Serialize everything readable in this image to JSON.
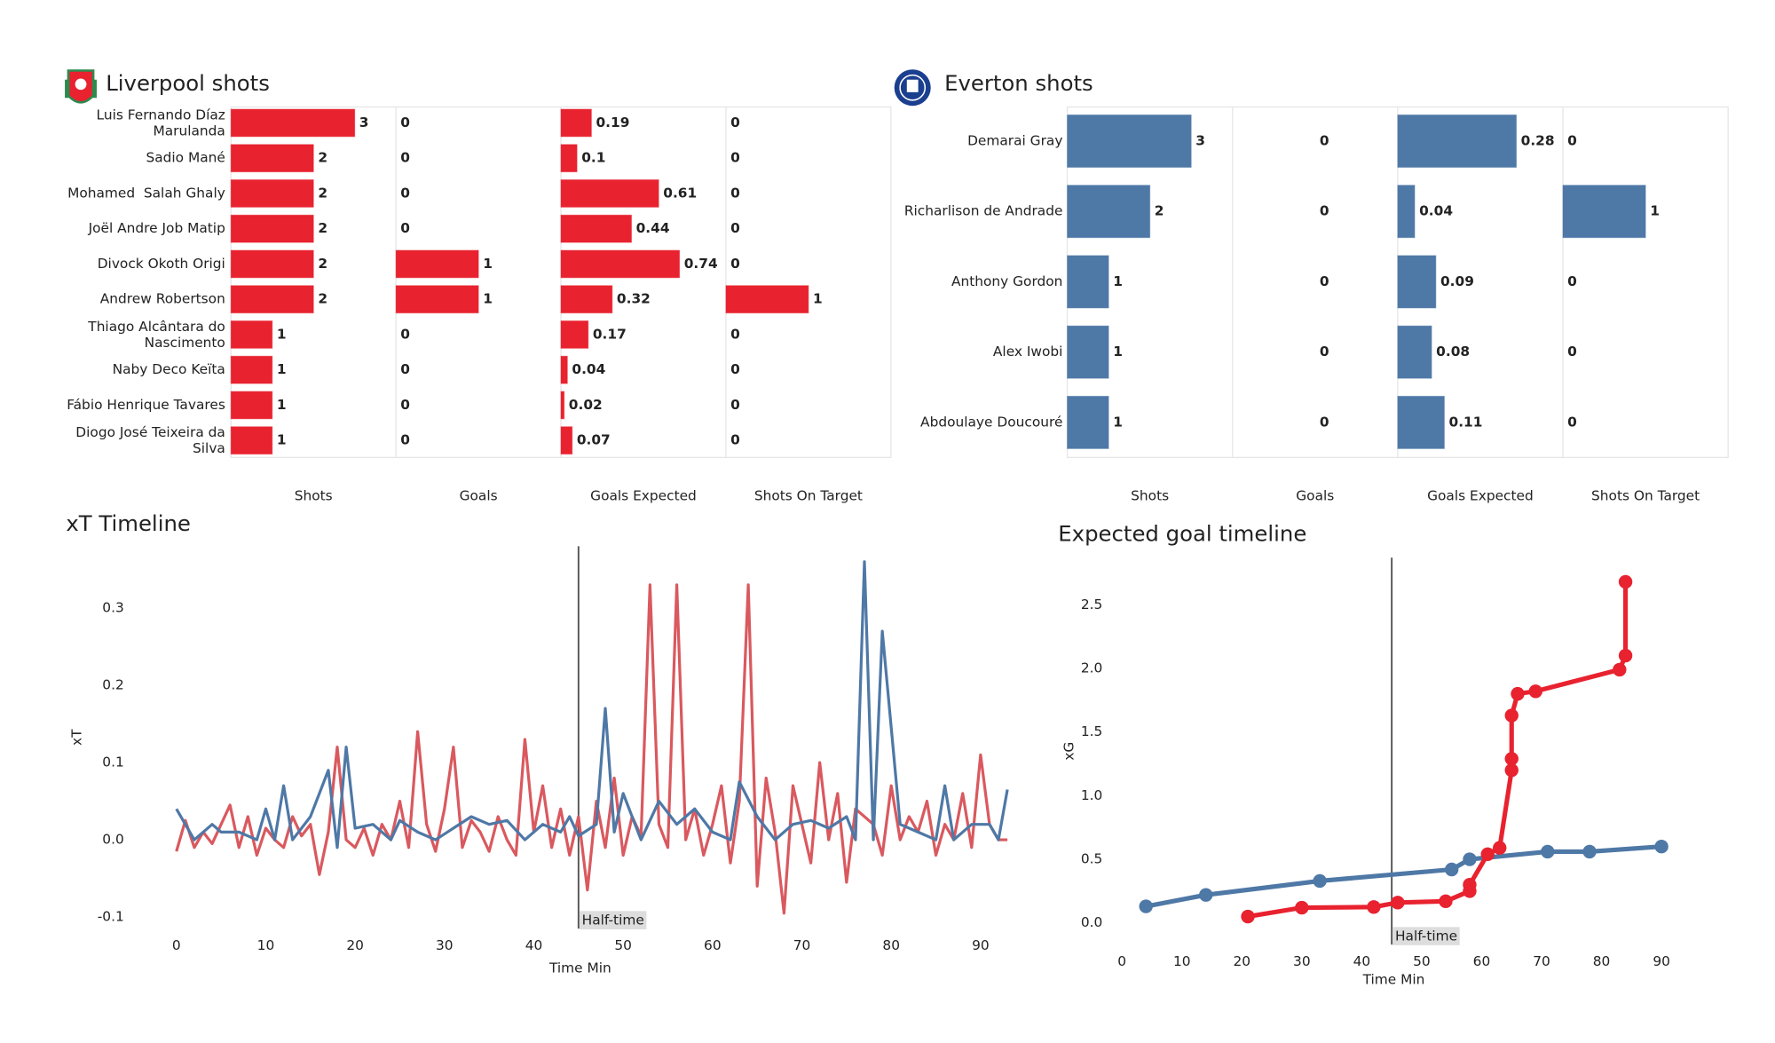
{
  "chart_data": [
    {
      "type": "bar-panels",
      "title": "Liverpool shots",
      "categories": [
        "Luis Fernando Díaz Marulanda",
        "Sadio Mané",
        "Mohamed  Salah Ghaly",
        "Joël Andre Job Matip",
        "Divock Okoth Origi",
        "Andrew Robertson",
        "Thiago Alcântara do Nascimento",
        "Naby Deco Keïta",
        "Fábio Henrique Tavares",
        "Diogo José Teixeira da Silva"
      ],
      "series": [
        {
          "name": "Shots",
          "color": "#e8222f",
          "xlim": [
            0,
            4
          ],
          "values": [
            3,
            2,
            2,
            2,
            2,
            2,
            1,
            1,
            1,
            1
          ]
        },
        {
          "name": "Goals",
          "color": "#e8222f",
          "xlim": [
            0,
            2
          ],
          "values": [
            0,
            0,
            0,
            0,
            1,
            1,
            0,
            0,
            0,
            0
          ]
        },
        {
          "name": "Goals Expected",
          "color": "#e8222f",
          "xlim": [
            0,
            1.03
          ],
          "values": [
            0.19,
            0.1,
            0.61,
            0.44,
            0.74,
            0.32,
            0.17,
            0.04,
            0.02,
            0.07
          ]
        },
        {
          "name": "Shots On Target",
          "color": "#e8222f",
          "xlim": [
            0,
            2
          ],
          "values": [
            0,
            0,
            0,
            0,
            0,
            1,
            0,
            0,
            0,
            0
          ]
        }
      ]
    },
    {
      "type": "bar-panels",
      "title": "Everton shots",
      "categories": [
        "Demarai Gray",
        "Richarlison de Andrade",
        "Anthony Gordon",
        "Alex Iwobi",
        "Abdoulaye Doucouré"
      ],
      "series": [
        {
          "name": "Shots",
          "color": "#4e78a6",
          "xlim": [
            0,
            4
          ],
          "values": [
            3,
            2,
            1,
            1,
            1
          ]
        },
        {
          "name": "Goals",
          "color": "#4e78a6",
          "xlim": [
            -1,
            1
          ],
          "values": [
            0,
            0,
            0,
            0,
            0
          ]
        },
        {
          "name": "Goals Expected",
          "color": "#4e78a6",
          "xlim": [
            0,
            0.39
          ],
          "values": [
            0.28,
            0.04,
            0.09,
            0.08,
            0.11
          ]
        },
        {
          "name": "Shots On Target",
          "color": "#4e78a6",
          "xlim": [
            0,
            2
          ],
          "values": [
            0,
            1,
            0,
            0,
            0
          ]
        }
      ]
    },
    {
      "type": "line",
      "title": "xT Timeline",
      "x_label": "Time Min",
      "y_label": "xT",
      "xlim": [
        -5.1,
        95.5
      ],
      "ylim": [
        -0.115,
        0.38
      ],
      "xticks": [
        0,
        10,
        20,
        30,
        40,
        50,
        60,
        70,
        80,
        90
      ],
      "yticks": [
        -0.1,
        {
          "value": 0,
          "label": "0.0"
        },
        0.1,
        0.2,
        0.3
      ],
      "markers": false,
      "annotations": [
        {
          "x": 45,
          "text": "Half-time"
        }
      ],
      "series": [
        {
          "color": "#d9595f",
          "x": [
            0,
            1,
            2,
            3,
            4,
            5,
            6,
            7,
            8,
            9,
            10,
            11,
            12,
            13,
            14,
            15,
            16,
            17,
            18,
            19,
            20,
            21,
            22,
            23,
            24,
            25,
            26,
            27,
            28,
            29,
            30,
            31,
            32,
            33,
            34,
            35,
            36,
            37,
            38,
            39,
            40,
            41,
            42,
            43,
            44,
            45,
            46,
            47,
            48,
            49,
            50,
            51,
            52,
            53,
            54,
            55,
            56,
            57,
            58,
            59,
            60,
            61,
            62,
            63,
            64,
            65,
            66,
            67,
            68,
            69,
            70,
            71,
            72,
            73,
            74,
            75,
            76,
            77,
            78,
            79,
            80,
            81,
            82,
            83,
            84,
            85,
            86,
            87,
            88,
            89,
            90,
            91,
            92,
            93
          ],
          "values": [
            -0.015,
            0.025,
            -0.01,
            0.01,
            -0.005,
            0.02,
            0.045,
            -0.01,
            0.03,
            -0.02,
            0.015,
            0.0,
            -0.01,
            0.03,
            0.005,
            0.02,
            -0.045,
            0.01,
            0.12,
            0.0,
            -0.01,
            0.015,
            -0.02,
            0.02,
            0.0,
            0.05,
            -0.01,
            0.14,
            0.02,
            -0.015,
            0.04,
            0.12,
            -0.01,
            0.025,
            0.01,
            -0.015,
            0.03,
            0.0,
            -0.02,
            0.13,
            0.01,
            0.07,
            -0.01,
            0.04,
            -0.02,
            0.03,
            -0.065,
            0.05,
            -0.01,
            0.08,
            -0.02,
            0.03,
            0.005,
            0.33,
            0.02,
            -0.01,
            0.33,
            0.0,
            0.04,
            -0.02,
            0.02,
            0.07,
            -0.03,
            0.05,
            0.33,
            -0.06,
            0.08,
            0.01,
            -0.095,
            0.07,
            0.02,
            -0.03,
            0.1,
            0.0,
            0.06,
            -0.055,
            0.04,
            0.03,
            0.02,
            -0.02,
            0.07,
            0.0,
            0.03,
            0.01,
            0.05,
            -0.02,
            0.02,
            0.0,
            0.06,
            -0.01,
            0.11,
            0.02,
            0.0,
            0.0
          ]
        },
        {
          "color": "#4e78a6",
          "x": [
            0,
            2,
            4,
            5,
            7,
            9,
            10,
            11,
            12,
            13,
            15,
            17,
            18,
            19,
            20,
            22,
            24,
            25,
            27,
            29,
            31,
            33,
            35,
            37,
            39,
            41,
            43,
            44,
            45,
            47,
            48,
            49,
            50,
            52,
            54,
            56,
            58,
            60,
            62,
            63,
            65,
            67,
            69,
            71,
            73,
            75,
            76,
            77,
            78,
            79,
            81,
            83,
            85,
            86,
            87,
            89,
            91,
            92,
            93
          ],
          "values": [
            0.04,
            0.0,
            0.02,
            0.01,
            0.01,
            0.0,
            0.04,
            0.0,
            0.07,
            0.0,
            0.03,
            0.09,
            -0.01,
            0.12,
            0.015,
            0.02,
            0.0,
            0.025,
            0.01,
            0.0,
            0.015,
            0.03,
            0.02,
            0.025,
            0.0,
            0.02,
            0.01,
            0.03,
            0.005,
            0.02,
            0.17,
            0.01,
            0.06,
            0.0,
            0.05,
            0.02,
            0.04,
            0.01,
            0.0,
            0.075,
            0.03,
            0.0,
            0.02,
            0.025,
            0.015,
            0.03,
            0.0,
            0.36,
            0.0,
            0.27,
            0.02,
            0.01,
            0.0,
            0.07,
            0.0,
            0.02,
            0.02,
            0.0,
            0.065
          ]
        }
      ]
    },
    {
      "type": "line",
      "title": "Expected goal timeline",
      "x_label": "Time Min",
      "y_label": "xG",
      "xlim": [
        -2.1,
        92.8
      ],
      "ylim": [
        -0.17,
        2.87
      ],
      "xticks": [
        0,
        10,
        20,
        30,
        40,
        50,
        60,
        70,
        80,
        90
      ],
      "yticks": [
        {
          "value": 0,
          "label": "0.0"
        },
        0.5,
        {
          "value": 1,
          "label": "1.0"
        },
        1.5,
        {
          "value": 2,
          "label": "2.0"
        },
        2.5
      ],
      "markers": true,
      "annotations": [
        {
          "x": 45,
          "text": "Half-time"
        }
      ],
      "series": [
        {
          "color": "#4e78a6",
          "x": [
            4,
            14,
            33,
            55,
            58,
            71,
            78,
            90
          ],
          "values": [
            0.13,
            0.22,
            0.33,
            0.42,
            0.5,
            0.56,
            0.56,
            0.6
          ]
        },
        {
          "color": "#e8222f",
          "x": [
            21,
            30,
            42,
            46,
            54,
            58,
            58,
            61,
            63,
            65,
            65,
            65,
            66,
            69,
            83,
            84,
            84
          ],
          "values": [
            0.05,
            0.12,
            0.125,
            0.16,
            0.17,
            0.25,
            0.3,
            0.54,
            0.59,
            1.2,
            1.29,
            1.63,
            1.8,
            1.82,
            1.99,
            2.1,
            2.68
          ]
        }
      ]
    }
  ]
}
